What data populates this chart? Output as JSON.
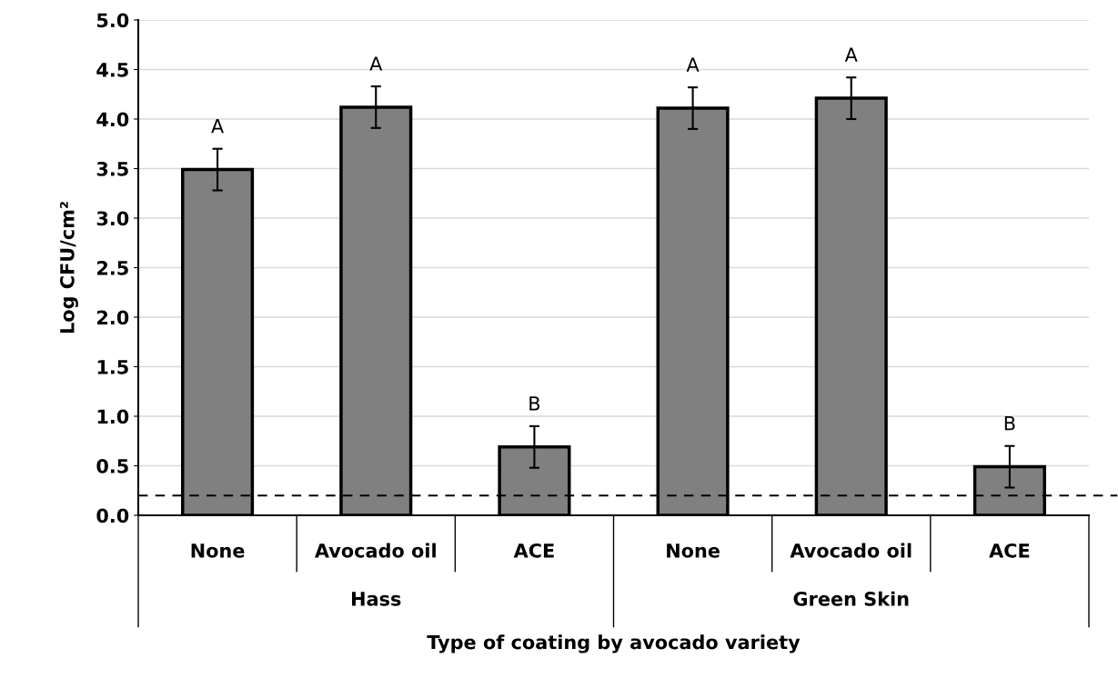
{
  "chart_data": {
    "type": "bar",
    "ylabel": "Log CFU/cm²",
    "xlabel": "Type of coating by avocado variety",
    "categories": [
      "None",
      "Avocado oil",
      "ACE",
      "None",
      "Avocado oil",
      "ACE"
    ],
    "values": [
      3.49,
      4.12,
      0.69,
      4.11,
      4.21,
      0.49
    ],
    "errors": [
      0.21,
      0.21,
      0.21,
      0.21,
      0.21,
      0.21
    ],
    "color": "#808080",
    "ylim": [
      0,
      5
    ],
    "yticks": [
      {
        "value": 0,
        "label": "0.0"
      },
      {
        "value": 0.5,
        "label": "0.5"
      },
      {
        "value": 1,
        "label": "1.0"
      },
      {
        "value": 1.5,
        "label": "1.5"
      },
      {
        "value": 2,
        "label": "2.0"
      },
      {
        "value": 2.5,
        "label": "2.5"
      },
      {
        "value": 3,
        "label": "3.0"
      },
      {
        "value": 3.5,
        "label": "3.5"
      },
      {
        "value": 4,
        "label": "4.0"
      },
      {
        "value": 4.5,
        "label": "4.5"
      },
      {
        "value": 5,
        "label": "5.0"
      }
    ],
    "grid": "y",
    "ref_lines": [
      {
        "axis": "y",
        "value": 0.2,
        "label": null,
        "line_style": "dashed",
        "color": "#000000"
      }
    ],
    "annotations": [
      "A",
      "A",
      "B",
      "A",
      "A",
      "B",
      "Hass",
      "Green Skin"
    ]
  }
}
